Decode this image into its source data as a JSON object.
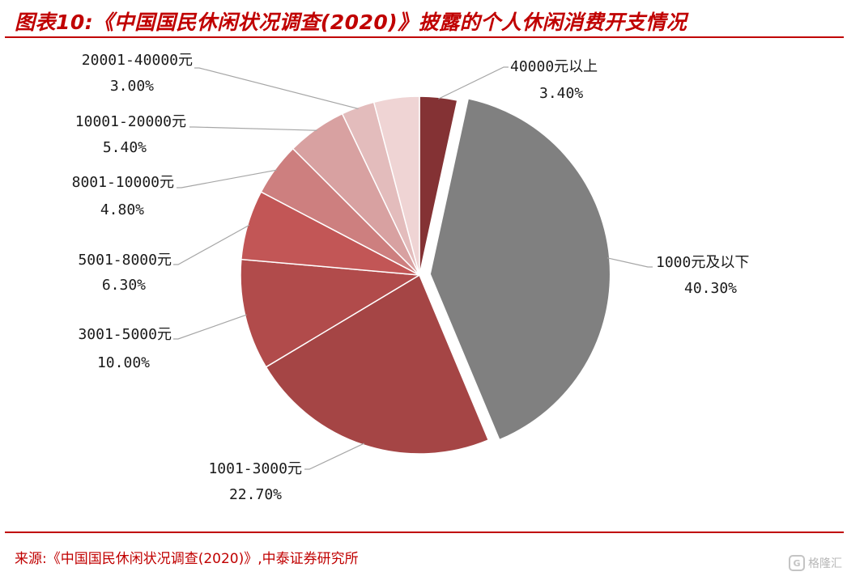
{
  "header": {
    "title": "图表10:《中国国民休闲状况调查(2020)》披露的个人休闲消费开支情况"
  },
  "footer": {
    "source": "来源:《中国国民休闲状况调查(2020)》,中泰证券研究所",
    "watermark_text": "格隆汇",
    "watermark_icon": "glh-logo-icon"
  },
  "colors": {
    "accent": "#c00000"
  },
  "chart_data": {
    "type": "pie",
    "start_angle_deg": 0,
    "direction": "clockwise",
    "slices": [
      {
        "label": "40000元以上",
        "value": 3.4,
        "display": "3.40%",
        "color": "#843234",
        "exploded": false
      },
      {
        "label": "1000元及以下",
        "value": 40.3,
        "display": "40.30%",
        "color": "#808080",
        "exploded": true
      },
      {
        "label": "1001-3000元",
        "value": 22.7,
        "display": "22.70%",
        "color": "#a54545",
        "exploded": false
      },
      {
        "label": "3001-5000元",
        "value": 10.0,
        "display": "10.00%",
        "color": "#b14b4b",
        "exploded": false
      },
      {
        "label": "5001-8000元",
        "value": 6.3,
        "display": "6.30%",
        "color": "#c25656",
        "exploded": false
      },
      {
        "label": "8001-10000元",
        "value": 4.8,
        "display": "4.80%",
        "color": "#cd7f7f",
        "exploded": false
      },
      {
        "label": "10001-20000元",
        "value": 5.4,
        "display": "5.40%",
        "color": "#d8a1a1",
        "exploded": false
      },
      {
        "label": "20001-40000元",
        "value": 3.0,
        "display": "3.00%",
        "color": "#e3bcbc",
        "exploded": false
      },
      {
        "label": "",
        "value": 4.1,
        "display": "",
        "color": "#efd4d4",
        "exploded": false
      }
    ]
  }
}
